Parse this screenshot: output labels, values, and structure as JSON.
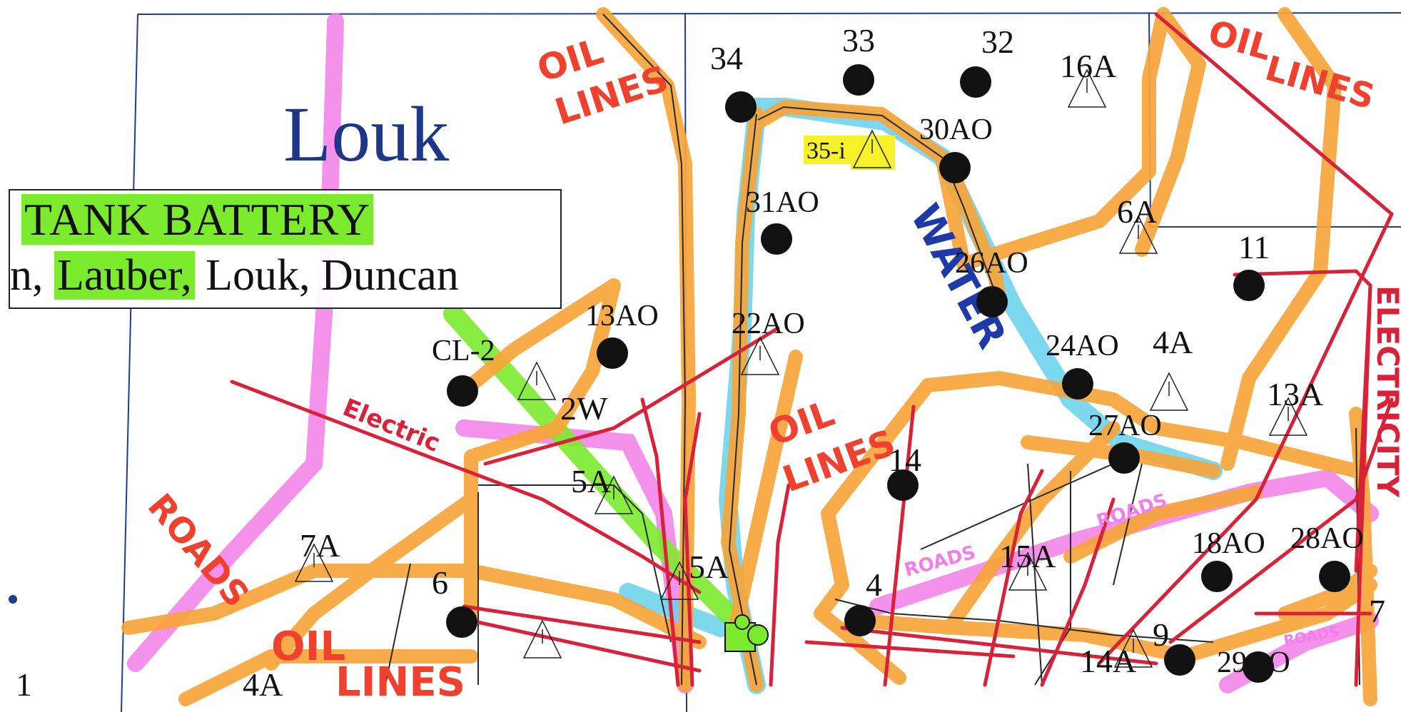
{
  "title": "Louk",
  "legend": {
    "line1": "TANK BATTERY",
    "line2_parts": [
      "n, ",
      "Lauber,",
      " Louk, Duncan"
    ]
  },
  "annotations": {
    "oil_lines_1": [
      "OIL",
      "LINES"
    ],
    "oil_lines_2": [
      "OIL",
      "LINES"
    ],
    "oil_lines_3": [
      "OIL",
      "LINES"
    ],
    "oil_lines_4": [
      "OIL",
      "LINES"
    ],
    "water": "WATER",
    "electric": "Electric",
    "electricity": "ELECTRICITY",
    "roads_1": "ROADS",
    "roads_2": "ROADS",
    "roads_3": "ROADS",
    "roads_4": "ROADS"
  },
  "wells": [
    {
      "label": "34",
      "kind": "producing"
    },
    {
      "label": "33",
      "kind": "producing"
    },
    {
      "label": "32",
      "kind": "producing"
    },
    {
      "label": "16A",
      "kind": "location"
    },
    {
      "label": "35-i",
      "kind": "injection"
    },
    {
      "label": "30AO",
      "kind": "producing"
    },
    {
      "label": "31AO",
      "kind": "producing"
    },
    {
      "label": "6A",
      "kind": "location"
    },
    {
      "label": "26AO",
      "kind": "producing"
    },
    {
      "label": "11",
      "kind": "producing"
    },
    {
      "label": "13AO",
      "kind": "producing"
    },
    {
      "label": "22AO",
      "kind": "location"
    },
    {
      "label": "CL-2",
      "kind": "producing"
    },
    {
      "label": "2W",
      "kind": "location"
    },
    {
      "label": "24AO",
      "kind": "producing"
    },
    {
      "label": "4A",
      "kind": "location"
    },
    {
      "label": "13A",
      "kind": "location"
    },
    {
      "label": "27AO",
      "kind": "producing"
    },
    {
      "label": "5A",
      "kind": "location"
    },
    {
      "label": "14",
      "kind": "producing"
    },
    {
      "label": "7A",
      "kind": "location"
    },
    {
      "label": "5A",
      "kind": "location"
    },
    {
      "label": "15A",
      "kind": "location"
    },
    {
      "label": "18AO",
      "kind": "producing"
    },
    {
      "label": "28AO",
      "kind": "producing"
    },
    {
      "label": "6",
      "kind": "producing"
    },
    {
      "label": "4",
      "kind": "producing"
    },
    {
      "label": "9",
      "kind": "producing"
    },
    {
      "label": "14A",
      "kind": "location"
    },
    {
      "label": "29AO",
      "kind": "producing"
    },
    {
      "label": "4A",
      "kind": "location"
    },
    {
      "label": "7",
      "kind": "label"
    },
    {
      "label": "1",
      "kind": "label"
    }
  ],
  "colors": {
    "oil": "#f7a53a",
    "road": "#f27ee8",
    "water": "#6fd3ec",
    "electric": "#d9213a",
    "pipe": "#2a2a2a",
    "grid": "#1f3c8f",
    "well": "#111111",
    "highlight_green": "#7cea2d",
    "highlight_yellow": "#f7f12a",
    "title": "#1e3687",
    "annotation_red": "#f0412e"
  }
}
